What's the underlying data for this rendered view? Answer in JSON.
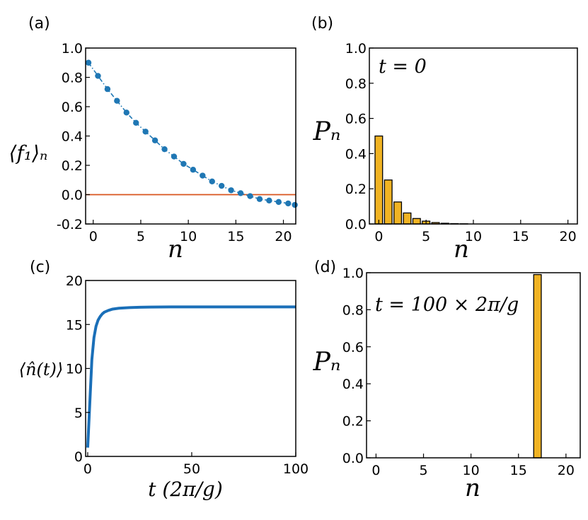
{
  "colors": {
    "marker_blue": "#1f77b4",
    "line_blue": "#1a6fb8",
    "zero_line": "#d9541e",
    "bar_fill": "#f0b323",
    "bar_edge": "#000000"
  },
  "chart_data": [
    {
      "panel": "(a)",
      "type": "line",
      "style": "dash-dot line with filled circle markers",
      "xlabel": "n",
      "ylabel": "⟨f₁⟩ₙ",
      "xlim": [
        -0.8,
        21.3
      ],
      "ylim": [
        -0.2,
        1.0
      ],
      "xticks": [
        0,
        5,
        10,
        15,
        20
      ],
      "yticks": [
        -0.2,
        0.0,
        0.2,
        0.4,
        0.6,
        0.8,
        1.0
      ],
      "ytick_labels": [
        "-0.2",
        "0.0",
        "0.2",
        "0.4",
        "0.6",
        "0.8",
        "1.0"
      ],
      "x": [
        -0.5,
        0.5,
        1.5,
        2.5,
        3.5,
        4.5,
        5.5,
        6.5,
        7.5,
        8.5,
        9.5,
        10.5,
        11.5,
        12.5,
        13.5,
        14.5,
        15.5,
        16.5,
        17.5,
        18.5,
        19.5,
        20.5,
        21.2
      ],
      "y": [
        0.9,
        0.81,
        0.72,
        0.64,
        0.56,
        0.49,
        0.43,
        0.37,
        0.31,
        0.26,
        0.21,
        0.17,
        0.13,
        0.09,
        0.06,
        0.03,
        0.01,
        -0.01,
        -0.03,
        -0.04,
        -0.05,
        -0.06,
        -0.07
      ],
      "reference_line": {
        "y": 0.0,
        "label": ""
      }
    },
    {
      "panel": "(b)",
      "type": "bar",
      "xlabel": "n",
      "ylabel": "Pₙ",
      "annotation": "t = 0",
      "xlim": [
        -1,
        21
      ],
      "ylim": [
        0,
        1.0
      ],
      "xticks": [
        0,
        5,
        10,
        15,
        20
      ],
      "yticks": [
        0.0,
        0.2,
        0.4,
        0.6,
        0.8,
        1.0
      ],
      "ytick_labels": [
        "0.0",
        "0.2",
        "0.4",
        "0.6",
        "0.8",
        "1.0"
      ],
      "categories": [
        0,
        1,
        2,
        3,
        4,
        5,
        6,
        7,
        8,
        9
      ],
      "values": [
        0.5,
        0.25,
        0.125,
        0.0625,
        0.031,
        0.016,
        0.008,
        0.004,
        0.002,
        0.001
      ]
    },
    {
      "panel": "(c)",
      "type": "line",
      "xlabel": "t (2π/g)",
      "ylabel": "⟨n̂(t)⟩",
      "xlim": [
        -1,
        100
      ],
      "ylim": [
        0,
        20
      ],
      "xticks": [
        0,
        50,
        100
      ],
      "yticks": [
        0,
        5,
        10,
        15,
        20
      ],
      "ytick_labels": [
        "0",
        "5",
        "10",
        "15",
        "20"
      ],
      "x": [
        0,
        1,
        2,
        3,
        4,
        5,
        6,
        7,
        8,
        10,
        12,
        15,
        20,
        25,
        30,
        40,
        50,
        60,
        70,
        80,
        90,
        100
      ],
      "y": [
        1,
        6,
        11,
        13.5,
        14.8,
        15.5,
        15.9,
        16.2,
        16.4,
        16.6,
        16.75,
        16.85,
        16.92,
        16.96,
        16.98,
        17,
        17,
        17,
        17,
        17,
        17,
        17
      ]
    },
    {
      "panel": "(d)",
      "type": "bar",
      "xlabel": "n",
      "ylabel": "Pₙ",
      "annotation": "t = 100 × 2π/g",
      "xlim": [
        -1,
        21.5
      ],
      "ylim": [
        0,
        1.0
      ],
      "xticks": [
        0,
        5,
        10,
        15,
        20
      ],
      "yticks": [
        0.0,
        0.2,
        0.4,
        0.6,
        0.8,
        1.0
      ],
      "ytick_labels": [
        "0.0",
        "0.2",
        "0.4",
        "0.6",
        "0.8",
        "1.0"
      ],
      "categories": [
        17
      ],
      "values": [
        0.99
      ]
    }
  ]
}
